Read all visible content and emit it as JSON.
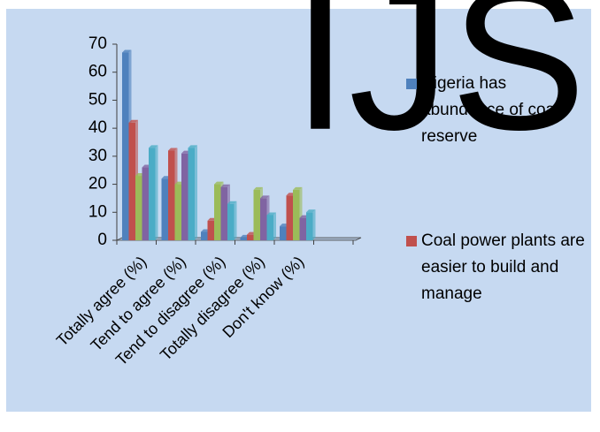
{
  "watermark": "IJS",
  "chart_data": {
    "type": "bar",
    "categories": [
      "Totally agree (%)",
      "Tend to agree (%)",
      "Tend to disagree (%)",
      "Totally disagree (%)",
      "Don't know (%)"
    ],
    "series": [
      {
        "name": "Nigeria has abundance of coal reserve",
        "color": "#4f81bd",
        "values": [
          67,
          22,
          3,
          1,
          5
        ]
      },
      {
        "name": "Coal power plants are easier to build and manage",
        "color": "#c0504d",
        "values": [
          42,
          32,
          7,
          2,
          16
        ]
      },
      {
        "color": "#9bbb59",
        "values": [
          23,
          20,
          20,
          18,
          18
        ]
      },
      {
        "color": "#8064a2",
        "values": [
          26,
          31,
          19,
          15,
          8
        ]
      },
      {
        "color": "#4bacc6",
        "values": [
          33,
          33,
          13,
          9,
          10
        ]
      }
    ],
    "ylim": [
      0,
      70
    ],
    "yticks": [
      0,
      10,
      20,
      30,
      40,
      50,
      60,
      70
    ]
  }
}
